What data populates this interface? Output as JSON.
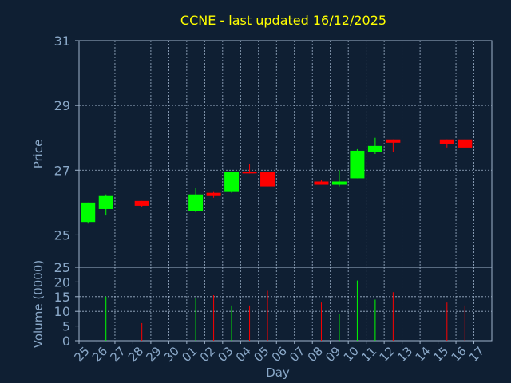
{
  "chart_data": [
    {
      "type": "candlestick",
      "title": "CCNE - last updated 16/12/2025",
      "ylabel": "Price",
      "ylim": [
        24,
        31
      ],
      "yticks": [
        25,
        27,
        29,
        31
      ],
      "grid": true,
      "up_color": "#00ff00",
      "down_color": "#ff0000",
      "categories": [
        "25",
        "26",
        "27",
        "28",
        "29",
        "30",
        "01",
        "02",
        "03",
        "04",
        "05",
        "06",
        "07",
        "08",
        "09",
        "10",
        "11",
        "12",
        "13",
        "14",
        "15",
        "16",
        "17"
      ],
      "candles": [
        {
          "day": "25",
          "open": 25.4,
          "close": 26.0,
          "high": 26.0,
          "low": 25.35
        },
        {
          "day": "26",
          "open": 25.8,
          "close": 26.2,
          "high": 26.25,
          "low": 25.6
        },
        {
          "day": "28",
          "open": 26.05,
          "close": 25.9,
          "high": 26.05,
          "low": 25.85
        },
        {
          "day": "01",
          "open": 25.75,
          "close": 26.25,
          "high": 26.45,
          "low": 25.7
        },
        {
          "day": "02",
          "open": 26.3,
          "close": 26.2,
          "high": 26.35,
          "low": 26.15
        },
        {
          "day": "03",
          "open": 26.35,
          "close": 26.95,
          "high": 26.95,
          "low": 26.3
        },
        {
          "day": "04",
          "open": 26.95,
          "close": 26.9,
          "high": 27.2,
          "low": 26.9
        },
        {
          "day": "05",
          "open": 26.95,
          "close": 26.5,
          "high": 26.95,
          "low": 26.5
        },
        {
          "day": "08",
          "open": 26.65,
          "close": 26.55,
          "high": 26.7,
          "low": 26.55
        },
        {
          "day": "09",
          "open": 26.55,
          "close": 26.65,
          "high": 27.0,
          "low": 26.5
        },
        {
          "day": "10",
          "open": 26.75,
          "close": 27.6,
          "high": 27.65,
          "low": 26.75
        },
        {
          "day": "11",
          "open": 27.55,
          "close": 27.75,
          "high": 28.0,
          "low": 27.5
        },
        {
          "day": "12",
          "open": 27.95,
          "close": 27.85,
          "high": 27.95,
          "low": 27.55
        },
        {
          "day": "15",
          "open": 27.95,
          "close": 27.8,
          "high": 27.95,
          "low": 27.7
        },
        {
          "day": "16",
          "open": 27.95,
          "close": 27.7,
          "high": 27.95,
          "low": 27.7
        }
      ]
    },
    {
      "type": "bar",
      "ylabel": "Volume (0000)",
      "xlabel": "Day",
      "ylim": [
        0,
        25
      ],
      "yticks": [
        0,
        5,
        10,
        15,
        20,
        25
      ],
      "grid": true,
      "categories": [
        "25",
        "26",
        "27",
        "28",
        "29",
        "30",
        "01",
        "02",
        "03",
        "04",
        "05",
        "06",
        "07",
        "08",
        "09",
        "10",
        "11",
        "12",
        "13",
        "14",
        "15",
        "16",
        "17"
      ],
      "bars": [
        {
          "day": "26",
          "value": 15,
          "color": "#00ff00"
        },
        {
          "day": "28",
          "value": 6,
          "color": "#ff0000"
        },
        {
          "day": "01",
          "value": 14.5,
          "color": "#00ff00"
        },
        {
          "day": "02",
          "value": 15.5,
          "color": "#ff0000"
        },
        {
          "day": "03",
          "value": 12,
          "color": "#00ff00"
        },
        {
          "day": "04",
          "value": 12,
          "color": "#ff0000"
        },
        {
          "day": "05",
          "value": 17,
          "color": "#ff0000"
        },
        {
          "day": "08",
          "value": 13,
          "color": "#ff0000"
        },
        {
          "day": "09",
          "value": 9,
          "color": "#00ff00"
        },
        {
          "day": "10",
          "value": 20.5,
          "color": "#00ff00"
        },
        {
          "day": "11",
          "value": 14,
          "color": "#00ff00"
        },
        {
          "day": "12",
          "value": 16.5,
          "color": "#ff0000"
        },
        {
          "day": "15",
          "value": 13,
          "color": "#ff0000"
        },
        {
          "day": "16",
          "value": 12,
          "color": "#ff0000"
        }
      ]
    }
  ],
  "colors": {
    "background": "#0f1f33",
    "plot_border": "#a0b4cc",
    "grid": "#a0b4cc",
    "title": "#ffff00",
    "axis_text": "#8aa8c8"
  }
}
